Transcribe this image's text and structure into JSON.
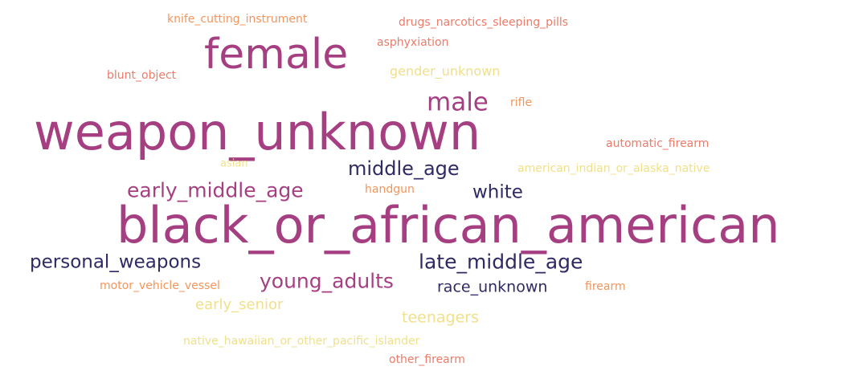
{
  "words": {
    "black_or_african_american": "black_or_african_american",
    "weapon_unknown": "weapon_unknown",
    "female": "female",
    "male": "male",
    "middle_age": "middle_age",
    "early_middle_age": "early_middle_age",
    "white": "white",
    "personal_weapons": "personal_weapons",
    "late_middle_age": "late_middle_age",
    "young_adults": "young_adults",
    "race_unknown": "race_unknown",
    "knife_cutting_instrument": "knife_cutting_instrument",
    "drugs_narcotics_sleeping_pills": "drugs_narcotics_sleeping_pills",
    "asphyxiation": "asphyxiation",
    "blunt_object": "blunt_object",
    "gender_unknown": "gender_unknown",
    "rifle": "rifle",
    "automatic_firearm": "automatic_firearm",
    "asian": "asian",
    "american_indian_or_alaska_native": "american_indian_or_alaska_native",
    "handgun": "handgun",
    "motor_vehicle_vessel": "motor_vehicle_vessel",
    "firearm": "firearm",
    "early_senior": "early_senior",
    "teenagers": "teenagers",
    "native_hawaiian_or_other_pacific_islander": "native_hawaiian_or_other_pacific_islander",
    "other_firearm": "other_firearm"
  },
  "colors": {
    "magenta": "#a53f82",
    "navy": "#2f2a63",
    "salmon": "#ec7b6a",
    "orange": "#f2955c",
    "yellow": "#f0e08c"
  }
}
